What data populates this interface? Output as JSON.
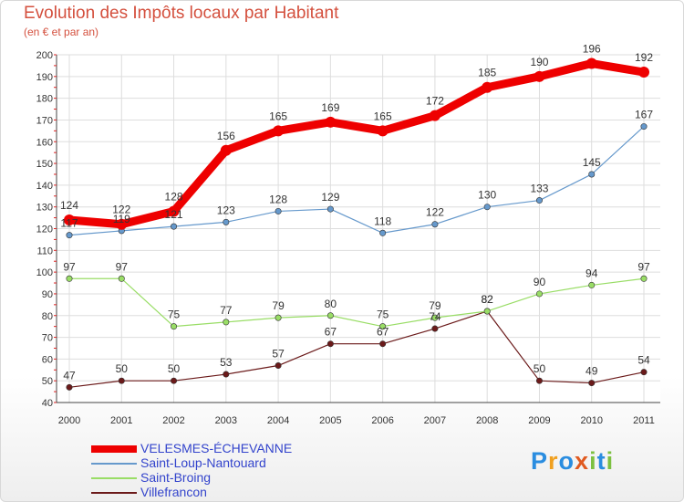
{
  "header": {
    "title": "Evolution des Impôts locaux par Habitant",
    "subtitle": "(en € et par an)"
  },
  "logo": {
    "text": "Proxiti",
    "letters": [
      "P",
      "r",
      "o",
      "x",
      "i",
      "t",
      "i"
    ],
    "colors": [
      "#2a8de0",
      "#f0a020",
      "#2a8de0",
      "#e05a20",
      "#7cc040",
      "#2a8de0",
      "#7cc040"
    ]
  },
  "chart_data": {
    "type": "line",
    "x": [
      "2000",
      "2001",
      "2002",
      "2003",
      "2004",
      "2005",
      "2006",
      "2007",
      "2008",
      "2009",
      "2010",
      "2011"
    ],
    "ylim": [
      40,
      200
    ],
    "yticks": [
      40,
      50,
      60,
      70,
      80,
      90,
      100,
      110,
      120,
      130,
      140,
      150,
      160,
      170,
      180,
      190,
      200
    ],
    "grid": true,
    "legend_position": "bottom-left",
    "series": [
      {
        "name": "VELESMES-ÉCHEVANNE",
        "color": "#ee0000",
        "values": [
          124,
          122,
          128,
          156,
          165,
          169,
          165,
          172,
          185,
          190,
          196,
          192
        ]
      },
      {
        "name": "Saint-Loup-Nantouard",
        "color": "#6699cc",
        "values": [
          117,
          119,
          121,
          123,
          128,
          129,
          118,
          122,
          130,
          133,
          145,
          167
        ]
      },
      {
        "name": "Saint-Broing",
        "color": "#99dd66",
        "values": [
          97,
          97,
          75,
          77,
          79,
          80,
          75,
          79,
          82,
          90,
          94,
          97
        ]
      },
      {
        "name": "Villefrancon",
        "color": "#6b1a1a",
        "values": [
          47,
          50,
          50,
          53,
          57,
          67,
          67,
          74,
          82,
          50,
          49,
          54
        ]
      }
    ]
  }
}
